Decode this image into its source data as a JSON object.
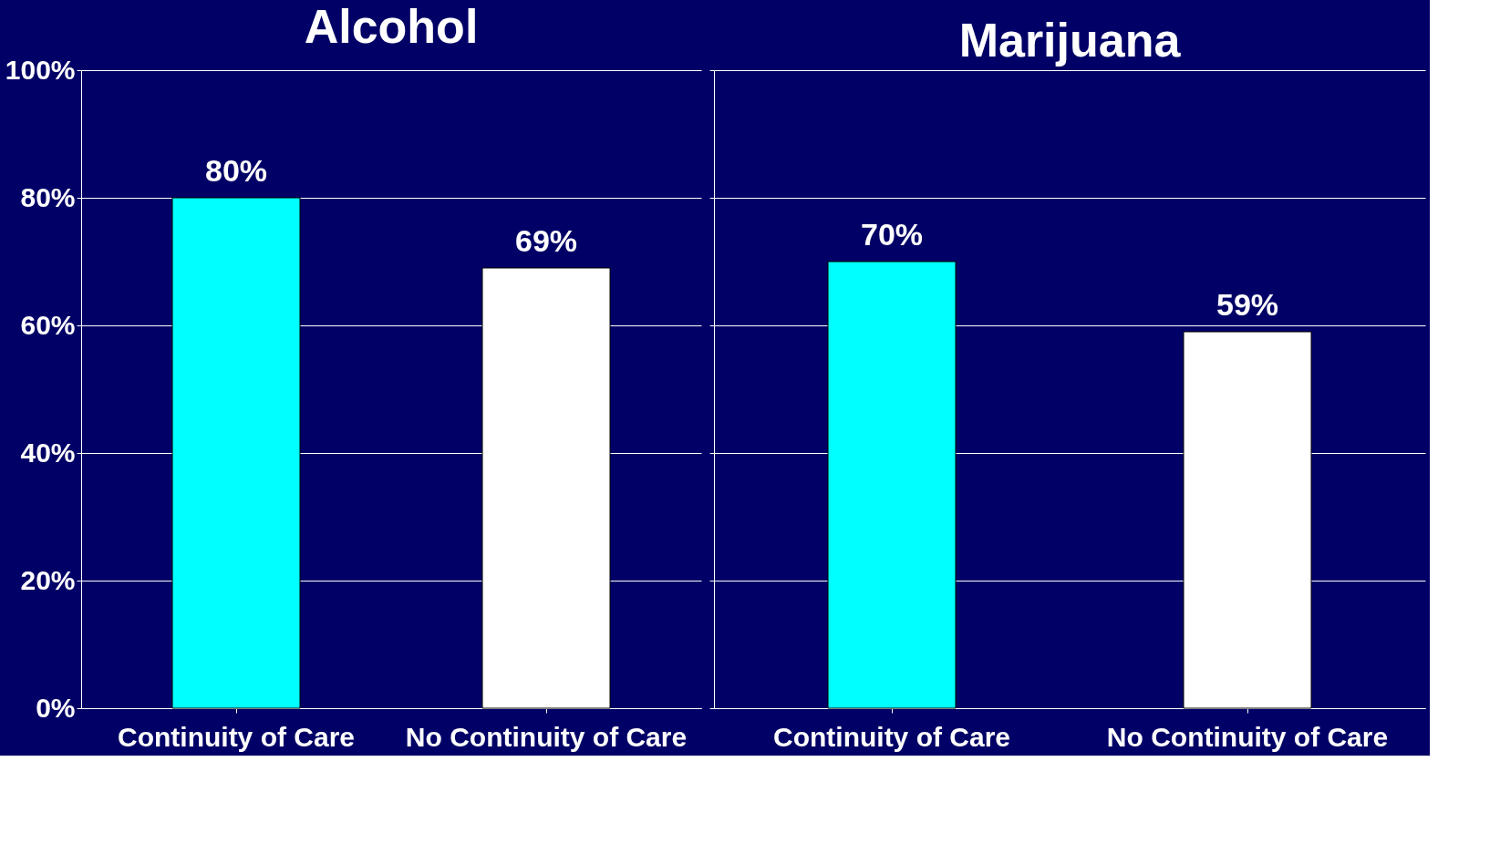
{
  "chart_data": [
    {
      "type": "bar",
      "title": "Alcohol",
      "categories": [
        "Continuity of Care",
        "No Continuity of Care"
      ],
      "values": [
        80,
        69
      ],
      "colors": [
        "#00ffff",
        "#ffffff"
      ],
      "ylim": [
        0,
        100
      ],
      "yticks": [
        {
          "value": 0,
          "label": "0%"
        },
        {
          "value": 20,
          "label": "20%"
        },
        {
          "value": 40,
          "label": "40%"
        },
        {
          "value": 60,
          "label": "60%"
        },
        {
          "value": 80,
          "label": "80%"
        },
        {
          "value": 100,
          "label": "100%"
        }
      ],
      "grid": "y",
      "value_labels": [
        "80%",
        "69%"
      ]
    },
    {
      "type": "bar",
      "title": "Marijuana",
      "categories": [
        "Continuity of Care",
        "No Continuity of Care"
      ],
      "values": [
        70,
        59
      ],
      "colors": [
        "#00ffff",
        "#ffffff"
      ],
      "ylim": [
        0,
        100
      ],
      "yticks": [
        {
          "value": 0,
          "label": null
        },
        {
          "value": 20,
          "label": null
        },
        {
          "value": 40,
          "label": null
        },
        {
          "value": 60,
          "label": null
        },
        {
          "value": 80,
          "label": null
        },
        {
          "value": 100,
          "label": null
        }
      ],
      "grid": "y",
      "tick_labels": "x",
      "value_labels": [
        "70%",
        "59%"
      ]
    }
  ]
}
